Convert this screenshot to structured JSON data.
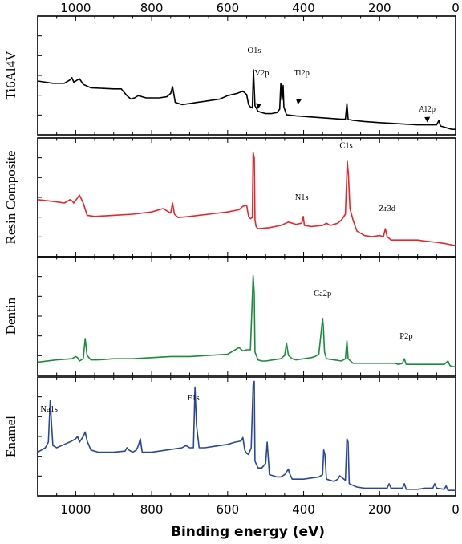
{
  "chart_data": {
    "type": "line",
    "xlabel": "Binding energy (eV)",
    "xlim": [
      1100,
      0
    ],
    "x_reversed": true,
    "x_ticks": [
      1000,
      800,
      600,
      400,
      200,
      0
    ],
    "grid": false,
    "series": [
      {
        "name": "Ti6Al4V",
        "color": "#000000",
        "points": [
          [
            1100,
            55
          ],
          [
            1080,
            56
          ],
          [
            1060,
            57
          ],
          [
            1030,
            57
          ],
          [
            1015,
            54
          ],
          [
            1010,
            52
          ],
          [
            1005,
            56
          ],
          [
            995,
            54
          ],
          [
            990,
            53
          ],
          [
            980,
            58
          ],
          [
            960,
            61
          ],
          [
            900,
            62
          ],
          [
            880,
            62
          ],
          [
            870,
            66
          ],
          [
            865,
            68
          ],
          [
            855,
            71
          ],
          [
            845,
            70
          ],
          [
            835,
            68
          ],
          [
            815,
            70
          ],
          [
            780,
            70
          ],
          [
            760,
            69
          ],
          [
            750,
            66
          ],
          [
            745,
            60
          ],
          [
            742,
            66
          ],
          [
            738,
            74
          ],
          [
            720,
            76
          ],
          [
            680,
            74
          ],
          [
            620,
            71
          ],
          [
            600,
            68
          ],
          [
            575,
            66
          ],
          [
            560,
            64
          ],
          [
            550,
            67
          ],
          [
            545,
            76
          ],
          [
            540,
            78
          ],
          [
            535,
            79
          ],
          [
            532,
            45
          ],
          [
            528,
            77
          ],
          [
            520,
            82
          ],
          [
            500,
            84
          ],
          [
            485,
            84
          ],
          [
            470,
            83
          ],
          [
            463,
            80
          ],
          [
            460,
            57
          ],
          [
            457,
            72
          ],
          [
            454,
            59
          ],
          [
            452,
            78
          ],
          [
            445,
            85
          ],
          [
            420,
            86
          ],
          [
            380,
            87
          ],
          [
            340,
            88
          ],
          [
            300,
            89
          ],
          [
            290,
            89
          ],
          [
            286,
            75
          ],
          [
            283,
            89
          ],
          [
            270,
            90
          ],
          [
            240,
            91
          ],
          [
            200,
            92
          ],
          [
            150,
            93
          ],
          [
            100,
            94
          ],
          [
            70,
            94
          ],
          [
            55,
            94
          ],
          [
            50,
            94
          ],
          [
            44,
            90
          ],
          [
            40,
            95
          ],
          [
            30,
            96
          ],
          [
            20,
            97
          ],
          [
            10,
            98
          ],
          [
            0,
            98
          ]
        ]
      },
      {
        "name": "Resin Composite",
        "color": "#e8262a",
        "points": [
          [
            1100,
            52
          ],
          [
            1050,
            54
          ],
          [
            1030,
            55
          ],
          [
            1015,
            52
          ],
          [
            1010,
            53
          ],
          [
            1005,
            55
          ],
          [
            990,
            48
          ],
          [
            980,
            55
          ],
          [
            970,
            66
          ],
          [
            950,
            67
          ],
          [
            900,
            66
          ],
          [
            850,
            65
          ],
          [
            800,
            63
          ],
          [
            770,
            60
          ],
          [
            760,
            62
          ],
          [
            750,
            64
          ],
          [
            745,
            55
          ],
          [
            740,
            65
          ],
          [
            730,
            68
          ],
          [
            700,
            67
          ],
          [
            650,
            65
          ],
          [
            600,
            63
          ],
          [
            570,
            61
          ],
          [
            560,
            58
          ],
          [
            550,
            57
          ],
          [
            545,
            67
          ],
          [
            540,
            69
          ],
          [
            535,
            68
          ],
          [
            533,
            10
          ],
          [
            530,
            15
          ],
          [
            528,
            70
          ],
          [
            525,
            76
          ],
          [
            520,
            78
          ],
          [
            490,
            77
          ],
          [
            460,
            75
          ],
          [
            440,
            72
          ],
          [
            420,
            74
          ],
          [
            405,
            73
          ],
          [
            401,
            67
          ],
          [
            398,
            75
          ],
          [
            380,
            76
          ],
          [
            350,
            75
          ],
          [
            340,
            73
          ],
          [
            330,
            75
          ],
          [
            310,
            73
          ],
          [
            300,
            70
          ],
          [
            290,
            65
          ],
          [
            285,
            18
          ],
          [
            282,
            30
          ],
          [
            278,
            60
          ],
          [
            270,
            70
          ],
          [
            260,
            80
          ],
          [
            240,
            84
          ],
          [
            220,
            85
          ],
          [
            200,
            84
          ],
          [
            190,
            85
          ],
          [
            185,
            78
          ],
          [
            180,
            85
          ],
          [
            170,
            88
          ],
          [
            150,
            88
          ],
          [
            120,
            88
          ],
          [
            100,
            88
          ],
          [
            80,
            89
          ],
          [
            50,
            90
          ],
          [
            30,
            91
          ],
          [
            0,
            93
          ]
        ]
      },
      {
        "name": "Dentin",
        "color": "#1a8c3c",
        "points": [
          [
            1100,
            91
          ],
          [
            1050,
            89
          ],
          [
            1010,
            88
          ],
          [
            1000,
            86
          ],
          [
            995,
            87
          ],
          [
            990,
            90
          ],
          [
            980,
            88
          ],
          [
            975,
            70
          ],
          [
            970,
            85
          ],
          [
            960,
            89
          ],
          [
            940,
            89
          ],
          [
            900,
            88
          ],
          [
            850,
            88
          ],
          [
            800,
            87
          ],
          [
            750,
            86
          ],
          [
            700,
            86
          ],
          [
            650,
            85
          ],
          [
            600,
            84
          ],
          [
            580,
            80
          ],
          [
            570,
            78
          ],
          [
            560,
            81
          ],
          [
            550,
            80
          ],
          [
            540,
            80
          ],
          [
            533,
            14
          ],
          [
            530,
            30
          ],
          [
            528,
            82
          ],
          [
            520,
            89
          ],
          [
            510,
            90
          ],
          [
            500,
            90
          ],
          [
            480,
            89
          ],
          [
            460,
            88
          ],
          [
            450,
            85
          ],
          [
            445,
            74
          ],
          [
            440,
            85
          ],
          [
            430,
            88
          ],
          [
            420,
            89
          ],
          [
            400,
            88
          ],
          [
            380,
            87
          ],
          [
            370,
            86
          ],
          [
            360,
            84
          ],
          [
            350,
            52
          ],
          [
            348,
            60
          ],
          [
            345,
            82
          ],
          [
            340,
            88
          ],
          [
            320,
            89
          ],
          [
            300,
            90
          ],
          [
            290,
            88
          ],
          [
            286,
            72
          ],
          [
            283,
            88
          ],
          [
            270,
            92
          ],
          [
            250,
            92
          ],
          [
            200,
            92
          ],
          [
            160,
            92
          ],
          [
            150,
            93
          ],
          [
            140,
            92
          ],
          [
            135,
            88
          ],
          [
            130,
            93
          ],
          [
            100,
            93
          ],
          [
            50,
            93
          ],
          [
            30,
            93
          ],
          [
            20,
            90
          ],
          [
            15,
            94
          ],
          [
            10,
            95
          ],
          [
            0,
            95
          ]
        ]
      },
      {
        "name": "Enamel",
        "color": "#2b479b",
        "points": [
          [
            1100,
            64
          ],
          [
            1090,
            62
          ],
          [
            1080,
            60
          ],
          [
            1072,
            55
          ],
          [
            1070,
            40
          ],
          [
            1067,
            18
          ],
          [
            1063,
            42
          ],
          [
            1060,
            58
          ],
          [
            1050,
            60
          ],
          [
            1030,
            57
          ],
          [
            1010,
            54
          ],
          [
            1000,
            52
          ],
          [
            995,
            50
          ],
          [
            990,
            55
          ],
          [
            980,
            50
          ],
          [
            975,
            46
          ],
          [
            970,
            54
          ],
          [
            960,
            62
          ],
          [
            940,
            64
          ],
          [
            900,
            64
          ],
          [
            870,
            63
          ],
          [
            865,
            60
          ],
          [
            860,
            62
          ],
          [
            850,
            64
          ],
          [
            840,
            62
          ],
          [
            835,
            58
          ],
          [
            830,
            52
          ],
          [
            825,
            64
          ],
          [
            800,
            64
          ],
          [
            780,
            63
          ],
          [
            760,
            62
          ],
          [
            740,
            61
          ],
          [
            720,
            60
          ],
          [
            710,
            58
          ],
          [
            700,
            60
          ],
          [
            690,
            60
          ],
          [
            686,
            6
          ],
          [
            682,
            40
          ],
          [
            675,
            60
          ],
          [
            660,
            60
          ],
          [
            640,
            59
          ],
          [
            620,
            58
          ],
          [
            600,
            57
          ],
          [
            580,
            55
          ],
          [
            565,
            54
          ],
          [
            560,
            51
          ],
          [
            555,
            62
          ],
          [
            550,
            65
          ],
          [
            545,
            66
          ],
          [
            538,
            60
          ],
          [
            533,
            4
          ],
          [
            530,
            1
          ],
          [
            528,
            72
          ],
          [
            520,
            78
          ],
          [
            510,
            78
          ],
          [
            500,
            74
          ],
          [
            496,
            55
          ],
          [
            494,
            64
          ],
          [
            490,
            84
          ],
          [
            480,
            85
          ],
          [
            470,
            86
          ],
          [
            460,
            86
          ],
          [
            450,
            84
          ],
          [
            440,
            79
          ],
          [
            438,
            82
          ],
          [
            430,
            88
          ],
          [
            400,
            88
          ],
          [
            380,
            87
          ],
          [
            360,
            86
          ],
          [
            350,
            84
          ],
          [
            347,
            62
          ],
          [
            344,
            66
          ],
          [
            340,
            88
          ],
          [
            320,
            90
          ],
          [
            310,
            88
          ],
          [
            305,
            85
          ],
          [
            290,
            89
          ],
          [
            286,
            52
          ],
          [
            283,
            55
          ],
          [
            280,
            92
          ],
          [
            260,
            95
          ],
          [
            240,
            96
          ],
          [
            200,
            96
          ],
          [
            180,
            96
          ],
          [
            175,
            92
          ],
          [
            170,
            96
          ],
          [
            140,
            96
          ],
          [
            135,
            92
          ],
          [
            130,
            97
          ],
          [
            100,
            97
          ],
          [
            80,
            96
          ],
          [
            60,
            96
          ],
          [
            55,
            92
          ],
          [
            50,
            96
          ],
          [
            30,
            97
          ],
          [
            25,
            94
          ],
          [
            20,
            98
          ],
          [
            10,
            98
          ],
          [
            0,
            98
          ]
        ]
      }
    ],
    "panel_labels": [
      "Ti6Al4V",
      "Resin Composite",
      "Dentin",
      "Enamel"
    ],
    "annotations": [
      {
        "panel": 0,
        "text": "O1s",
        "x": 530,
        "y": 30,
        "arrow": false
      },
      {
        "panel": 0,
        "text": "V2p",
        "x": 510,
        "y": 50,
        "arrow": true,
        "arrow_x": 520,
        "arrow_y": 80
      },
      {
        "panel": 0,
        "text": "Ti2p",
        "x": 405,
        "y": 50,
        "arrow": true,
        "arrow_x": 415,
        "arrow_y": 76
      },
      {
        "panel": 0,
        "text": "Al2p",
        "x": 75,
        "y": 82,
        "arrow": true,
        "arrow_x": 74,
        "arrow_y": 92
      },
      {
        "panel": 1,
        "text": "C1s",
        "x": 288,
        "y": 6,
        "arrow": false
      },
      {
        "panel": 1,
        "text": "N1s",
        "x": 405,
        "y": 52,
        "arrow": false
      },
      {
        "panel": 1,
        "text": "Zr3d",
        "x": 180,
        "y": 62,
        "arrow": false
      },
      {
        "panel": 2,
        "text": "Ca2p",
        "x": 350,
        "y": 32,
        "arrow": false
      },
      {
        "panel": 2,
        "text": "P2p",
        "x": 130,
        "y": 70,
        "arrow": false
      },
      {
        "panel": 3,
        "text": "Na1s",
        "x": 1070,
        "y": 28,
        "arrow": false
      },
      {
        "panel": 3,
        "text": "F1s",
        "x": 690,
        "y": 18,
        "arrow": false
      }
    ]
  }
}
